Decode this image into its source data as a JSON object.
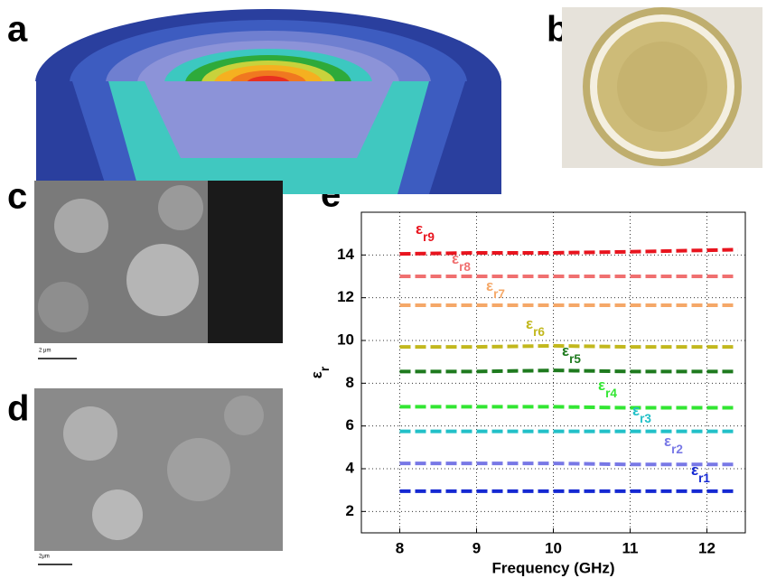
{
  "panels": {
    "a": "a",
    "b": "b",
    "c": "c",
    "d": "d",
    "e": "e",
    "c_scale": "2 μm",
    "d_scale": "2μm"
  },
  "chart_data": {
    "type": "line",
    "x_label": "Frequency (GHz)",
    "y_label": "εr",
    "xlim": [
      7.5,
      12.5
    ],
    "ylim": [
      1,
      16
    ],
    "xticks": [
      8,
      9,
      10,
      11,
      12
    ],
    "yticks": [
      2,
      4,
      6,
      8,
      10,
      12,
      14
    ],
    "grid": true,
    "x": [
      8,
      9,
      10,
      11,
      12.4
    ],
    "series": [
      {
        "name": "εr9",
        "color": "#e8141e",
        "values": [
          14.05,
          14.1,
          14.1,
          14.15,
          14.25
        ]
      },
      {
        "name": "εr8",
        "color": "#f07070",
        "values": [
          13.0,
          13.0,
          13.0,
          13.0,
          13.0
        ]
      },
      {
        "name": "εr7",
        "color": "#f5a868",
        "values": [
          11.65,
          11.65,
          11.65,
          11.65,
          11.65
        ]
      },
      {
        "name": "εr6",
        "color": "#c2b81e",
        "values": [
          9.7,
          9.7,
          9.75,
          9.7,
          9.7
        ]
      },
      {
        "name": "εr5",
        "color": "#1e7a1e",
        "values": [
          8.55,
          8.55,
          8.6,
          8.55,
          8.55
        ]
      },
      {
        "name": "εr4",
        "color": "#32e632",
        "values": [
          6.9,
          6.9,
          6.9,
          6.85,
          6.85
        ]
      },
      {
        "name": "εr3",
        "color": "#22c0c8",
        "values": [
          5.75,
          5.75,
          5.75,
          5.75,
          5.75
        ]
      },
      {
        "name": "εr2",
        "color": "#7878e6",
        "values": [
          4.25,
          4.25,
          4.25,
          4.2,
          4.2
        ]
      },
      {
        "name": "εr1",
        "color": "#1428d2",
        "values": [
          2.95,
          2.95,
          2.95,
          2.95,
          2.95
        ]
      }
    ]
  }
}
